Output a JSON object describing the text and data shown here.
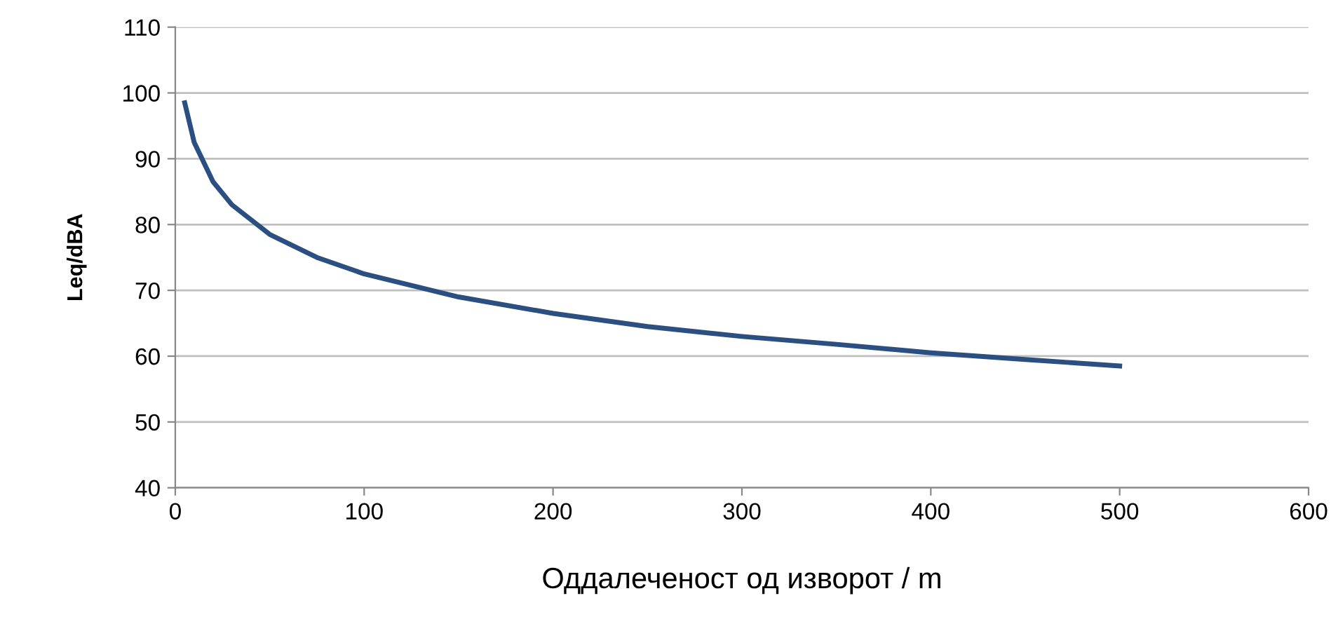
{
  "chart_data": {
    "type": "line",
    "xlabel": "Оддалеченост од изворот / m",
    "ylabel": "Leq/dBA",
    "x": [
      5,
      10,
      20,
      30,
      50,
      75,
      100,
      150,
      200,
      250,
      300,
      350,
      400,
      450,
      500
    ],
    "series": [
      {
        "color": "#2b4f80",
        "values": [
          98.5,
          92.5,
          86.5,
          83,
          78.5,
          75,
          72.5,
          69,
          66.5,
          64.5,
          63,
          61.8,
          60.5,
          59.5,
          58.5
        ]
      }
    ],
    "xlim": [
      0,
      600
    ],
    "xticks": [
      0,
      100,
      200,
      300,
      400,
      500,
      600
    ],
    "ylim": [
      40,
      110
    ],
    "yticks": [
      40,
      50,
      60,
      70,
      80,
      90,
      100,
      110
    ],
    "grid": "y",
    "marker": "none",
    "line_style": "solid"
  }
}
